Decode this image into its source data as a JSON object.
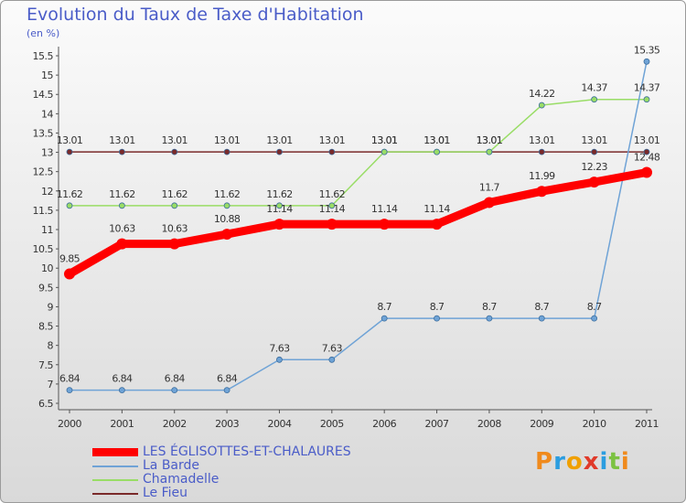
{
  "chart_data": {
    "type": "line",
    "title": "Evolution du Taux de Taxe d'Habitation",
    "unit_label": "(en %)",
    "categories": [
      "2000",
      "2001",
      "2002",
      "2003",
      "2004",
      "2005",
      "2006",
      "2007",
      "2008",
      "2009",
      "2010",
      "2011"
    ],
    "ylim": [
      6.5,
      15.5
    ],
    "yticks": [
      6.5,
      7,
      7.5,
      8,
      8.5,
      9,
      9.5,
      10,
      10.5,
      11,
      11.5,
      12,
      12.5,
      13,
      13.5,
      14,
      14.5,
      15,
      15.5
    ],
    "grid": false,
    "series": [
      {
        "name": "LES ÉGLISOTTES-ET-CHALAURES",
        "color": "#ff0000",
        "values": [
          9.85,
          10.63,
          10.63,
          10.88,
          11.14,
          11.14,
          11.14,
          11.14,
          11.7,
          11.99,
          12.23,
          12.48
        ],
        "labels": [
          "9.85",
          "10.63",
          "10.63",
          "10.88",
          "11.14",
          "11.14",
          "11.14",
          "11.14",
          "11.7",
          "11.99",
          "12.23",
          "12.48"
        ]
      },
      {
        "name": "La Barde",
        "color": "#6fa3d6",
        "values": [
          6.84,
          6.84,
          6.84,
          6.84,
          7.63,
          7.63,
          8.7,
          8.7,
          8.7,
          8.7,
          8.7,
          15.35
        ],
        "labels": [
          "6.84",
          "6.84",
          "6.84",
          "6.84",
          "7.63",
          "7.63",
          "8.7",
          "8.7",
          "8.7",
          "8.7",
          "8.7",
          "15.35"
        ]
      },
      {
        "name": "Chamadelle",
        "color": "#99dd66",
        "values": [
          11.62,
          11.62,
          11.62,
          11.62,
          11.62,
          11.62,
          13.01,
          13.01,
          13.01,
          14.22,
          14.37,
          14.37
        ],
        "labels": [
          "11.62",
          "11.62",
          "11.62",
          "11.62",
          "11.62",
          "11.62",
          "13.01",
          "13.01",
          "13.01",
          "14.22",
          "14.37",
          "14.37"
        ]
      },
      {
        "name": "Le Fieu",
        "color": "#7a2a2a",
        "values": [
          13.01,
          13.01,
          13.01,
          13.01,
          13.01,
          13.01,
          13.01,
          13.01,
          13.01,
          13.01,
          13.01,
          13.01
        ],
        "labels": [
          "13.01",
          "13.01",
          "13.01",
          "13.01",
          "13.01",
          "13.01",
          "13.01",
          "13.01",
          "13.01",
          "13.01",
          "13.01",
          "13.01"
        ]
      }
    ]
  },
  "logo": {
    "letters": [
      "P",
      "r",
      "o",
      "x",
      "i",
      "t",
      "i"
    ]
  }
}
